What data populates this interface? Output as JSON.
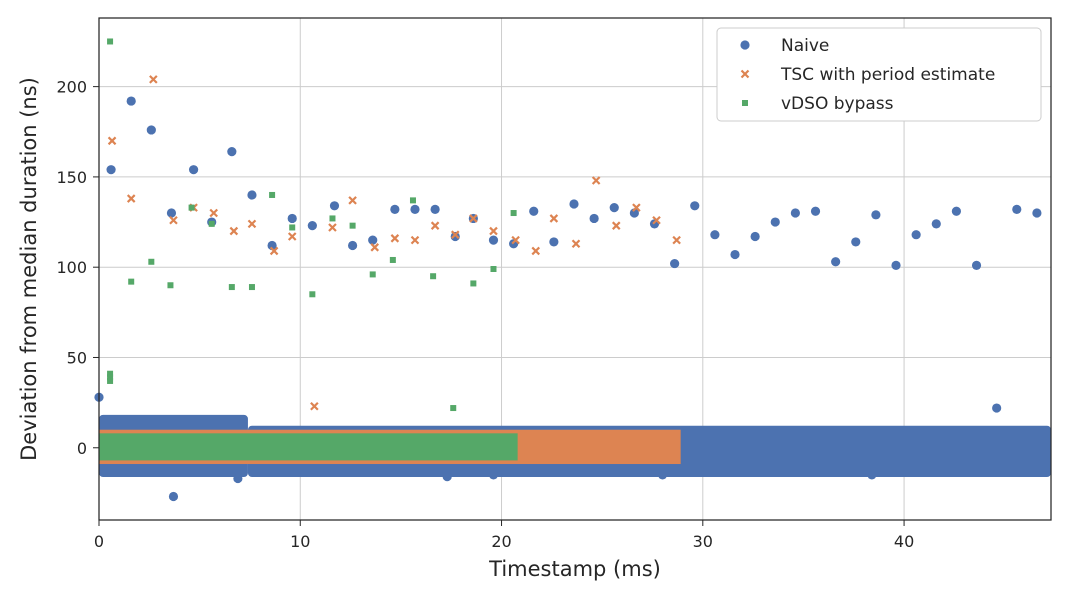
{
  "chart_data": {
    "type": "scatter",
    "xlabel": "Timestamp (ms)",
    "ylabel": "Deviation from median duration (ns)",
    "xlim": [
      0,
      47.3
    ],
    "ylim": [
      -40,
      238
    ],
    "xticks": [
      0,
      10,
      20,
      30,
      40
    ],
    "yticks": [
      0,
      50,
      100,
      150,
      200
    ],
    "grid": true,
    "legend_position": "top-right",
    "series": [
      {
        "name": "Naive",
        "color": "#4c72b0",
        "marker": "circle",
        "bands": [
          {
            "x": [
              0,
              7.4
            ],
            "y": [
              -14,
              16
            ]
          },
          {
            "x": [
              7.4,
              47.3
            ],
            "y": [
              -14,
              10
            ]
          }
        ],
        "points": [
          [
            0,
            28
          ],
          [
            0.6,
            154
          ],
          [
            1.6,
            192
          ],
          [
            2.6,
            176
          ],
          [
            3.6,
            130
          ],
          [
            4.7,
            154
          ],
          [
            5.6,
            125
          ],
          [
            6.6,
            164
          ],
          [
            7.6,
            140
          ],
          [
            8.6,
            112
          ],
          [
            9.6,
            127
          ],
          [
            10.6,
            123
          ],
          [
            11.7,
            134
          ],
          [
            12.6,
            112
          ],
          [
            13.6,
            115
          ],
          [
            14.7,
            132
          ],
          [
            15.7,
            132
          ],
          [
            16.7,
            132
          ],
          [
            17.7,
            117
          ],
          [
            18.6,
            127
          ],
          [
            19.6,
            115
          ],
          [
            20.6,
            113
          ],
          [
            21.6,
            131
          ],
          [
            22.6,
            114
          ],
          [
            23.6,
            135
          ],
          [
            24.6,
            127
          ],
          [
            25.6,
            133
          ],
          [
            26.6,
            130
          ],
          [
            27.6,
            124
          ],
          [
            28.6,
            102
          ],
          [
            29.6,
            134
          ],
          [
            30.6,
            118
          ],
          [
            31.6,
            107
          ],
          [
            32.6,
            117
          ],
          [
            33.6,
            125
          ],
          [
            34.6,
            130
          ],
          [
            35.6,
            131
          ],
          [
            36.6,
            103
          ],
          [
            37.6,
            114
          ],
          [
            38.6,
            129
          ],
          [
            39.6,
            101
          ],
          [
            40.6,
            118
          ],
          [
            41.6,
            124
          ],
          [
            42.6,
            131
          ],
          [
            43.6,
            101
          ],
          [
            44.6,
            22
          ],
          [
            45.6,
            132
          ],
          [
            46.6,
            130
          ],
          [
            3.7,
            -27
          ],
          [
            6.9,
            -17
          ],
          [
            17.3,
            -16
          ],
          [
            19.6,
            -15
          ],
          [
            28.0,
            -15
          ],
          [
            38.4,
            -15
          ]
        ]
      },
      {
        "name": "TSC with period estimate",
        "color": "#dd8452",
        "marker": "x",
        "bands": [
          {
            "x": [
              0,
              28.9
            ],
            "y": [
              -9,
              10
            ]
          }
        ],
        "points": [
          [
            0.65,
            170
          ],
          [
            1.6,
            138
          ],
          [
            2.7,
            204
          ],
          [
            3.7,
            126
          ],
          [
            4.7,
            133
          ],
          [
            5.7,
            130
          ],
          [
            6.7,
            120
          ],
          [
            7.6,
            124
          ],
          [
            8.7,
            109
          ],
          [
            9.6,
            117
          ],
          [
            10.7,
            23
          ],
          [
            11.6,
            122
          ],
          [
            12.6,
            137
          ],
          [
            13.7,
            111
          ],
          [
            14.7,
            116
          ],
          [
            15.7,
            115
          ],
          [
            16.7,
            123
          ],
          [
            17.7,
            118
          ],
          [
            18.6,
            127
          ],
          [
            19.6,
            120
          ],
          [
            20.7,
            115
          ],
          [
            21.7,
            109
          ],
          [
            22.6,
            127
          ],
          [
            23.7,
            113
          ],
          [
            24.7,
            148
          ],
          [
            25.7,
            123
          ],
          [
            26.7,
            133
          ],
          [
            27.7,
            126
          ],
          [
            28.7,
            115
          ]
        ]
      },
      {
        "name": "vDSO bypass",
        "color": "#55a868",
        "marker": "square",
        "bands": [
          {
            "x": [
              0,
              20.8
            ],
            "y": [
              -7,
              8
            ]
          }
        ],
        "points": [
          [
            0.55,
            225
          ],
          [
            0.55,
            41
          ],
          [
            0.55,
            39
          ],
          [
            0.55,
            37
          ],
          [
            1.6,
            92
          ],
          [
            2.6,
            103
          ],
          [
            3.55,
            90
          ],
          [
            4.6,
            133
          ],
          [
            5.6,
            124
          ],
          [
            6.6,
            89
          ],
          [
            7.6,
            89
          ],
          [
            8.6,
            140
          ],
          [
            9.6,
            122
          ],
          [
            10.6,
            85
          ],
          [
            11.6,
            127
          ],
          [
            12.6,
            123
          ],
          [
            13.6,
            96
          ],
          [
            14.6,
            104
          ],
          [
            15.6,
            137
          ],
          [
            16.6,
            95
          ],
          [
            17.6,
            22
          ],
          [
            18.6,
            91
          ],
          [
            19.6,
            99
          ],
          [
            20.6,
            130
          ]
        ]
      }
    ]
  }
}
